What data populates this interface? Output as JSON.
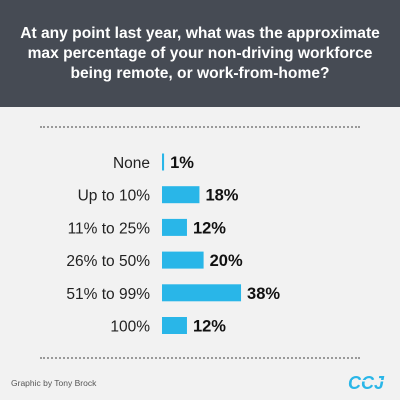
{
  "header": {
    "title": "At any point last year, what was the approximate max percentage of your non-driving workforce being remote, or work-from-home?"
  },
  "chart_data": {
    "type": "bar",
    "orientation": "horizontal",
    "title": "At any point last year, what was the approximate max percentage of your non-driving workforce being remote, or work-from-home?",
    "categories": [
      "None",
      "Up to 10%",
      "11% to 25%",
      "26% to 50%",
      "51% to 99%",
      "100%"
    ],
    "values": [
      1,
      18,
      12,
      20,
      38,
      12
    ],
    "value_labels": [
      "1%",
      "18%",
      "12%",
      "20%",
      "38%",
      "12%"
    ],
    "xlabel": "",
    "ylabel": "",
    "grid": false,
    "bar_color": "#29b6e8"
  },
  "footer": {
    "credit": "Graphic by Tony Brock",
    "logo_text": "CCJ"
  },
  "colors": {
    "header_bg": "#464b54",
    "page_bg": "#f2f2f2",
    "bar": "#29b6e8",
    "logo": "#29b6e8"
  }
}
